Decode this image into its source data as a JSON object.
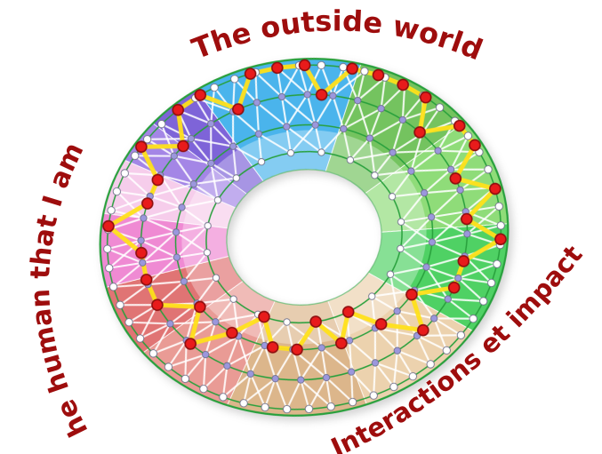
{
  "labels": {
    "top": "The outside world",
    "left": "The human that I am",
    "bottom_right": "Interactions et impact"
  },
  "label_style": {
    "color": "#9e0d0d",
    "halo": "#ffffff"
  },
  "diagram": {
    "hole_t": 0.38,
    "inner_band_t": 0.6,
    "ring_ts": [
      0.48,
      0.63,
      0.8,
      0.965
    ],
    "ring_counts": [
      20,
      28,
      40,
      56
    ],
    "ring_node_colors": [
      "#ffffff",
      "#9b97dd",
      "#9b97dd",
      "#ffffff"
    ],
    "node_stroke": "#6f6f8a",
    "ring_outline_color": "#28a03c",
    "mesh_color": "#ffffff",
    "yellow_path_color": "#ffe01a",
    "red_node_fill": "#e81b1b",
    "red_node_stroke": "#8e0f0f",
    "sectors": [
      {
        "name": "blue",
        "start": -24,
        "end": 24,
        "color": "#4ab4ec"
      },
      {
        "name": "green-1",
        "start": 24,
        "end": 60,
        "color": "#74c35f"
      },
      {
        "name": "green-2",
        "start": 60,
        "end": 96,
        "color": "#8fdc79"
      },
      {
        "name": "green-3",
        "start": 96,
        "end": 132,
        "color": "#4fd164"
      },
      {
        "name": "tan-1",
        "start": 132,
        "end": 170,
        "color": "#ecd2ae"
      },
      {
        "name": "tan-2",
        "start": 170,
        "end": 210,
        "color": "#dcb68b"
      },
      {
        "name": "red-1",
        "start": 210,
        "end": 240,
        "color": "#e99b95"
      },
      {
        "name": "red-2",
        "start": 240,
        "end": 264,
        "color": "#e07474"
      },
      {
        "name": "pink-1",
        "start": 264,
        "end": 288,
        "color": "#ef8ad3"
      },
      {
        "name": "pink-2",
        "start": 288,
        "end": 306,
        "color": "#f6cdeb"
      },
      {
        "name": "purple-1",
        "start": 306,
        "end": 320,
        "color": "#a486e6"
      },
      {
        "name": "purple-2",
        "start": 320,
        "end": 336,
        "color": "#7e64d8"
      }
    ],
    "path_points": [
      [
        0.965,
        352
      ],
      [
        0.965,
        0
      ],
      [
        0.965,
        8
      ],
      [
        0.8,
        14
      ],
      [
        0.965,
        22
      ],
      [
        0.965,
        30
      ],
      [
        0.965,
        38
      ],
      [
        0.965,
        46
      ],
      [
        0.8,
        53
      ],
      [
        0.965,
        60
      ],
      [
        0.965,
        68
      ],
      [
        0.8,
        76
      ],
      [
        0.965,
        84
      ],
      [
        0.8,
        93
      ],
      [
        0.965,
        101
      ],
      [
        0.8,
        110
      ],
      [
        0.8,
        121
      ],
      [
        0.63,
        131
      ],
      [
        0.8,
        141
      ],
      [
        0.63,
        151
      ],
      [
        0.48,
        161
      ],
      [
        0.63,
        171
      ],
      [
        0.48,
        181
      ],
      [
        0.63,
        191
      ],
      [
        0.63,
        202
      ],
      [
        0.48,
        212
      ],
      [
        0.63,
        222
      ],
      [
        0.8,
        232
      ],
      [
        0.63,
        242
      ],
      [
        0.8,
        252
      ],
      [
        0.8,
        263
      ],
      [
        0.8,
        274
      ],
      [
        0.965,
        284
      ],
      [
        0.8,
        294
      ],
      [
        0.8,
        304
      ],
      [
        0.965,
        312
      ],
      [
        0.8,
        320
      ],
      [
        0.965,
        328
      ],
      [
        0.965,
        336
      ],
      [
        0.8,
        344
      ]
    ]
  }
}
